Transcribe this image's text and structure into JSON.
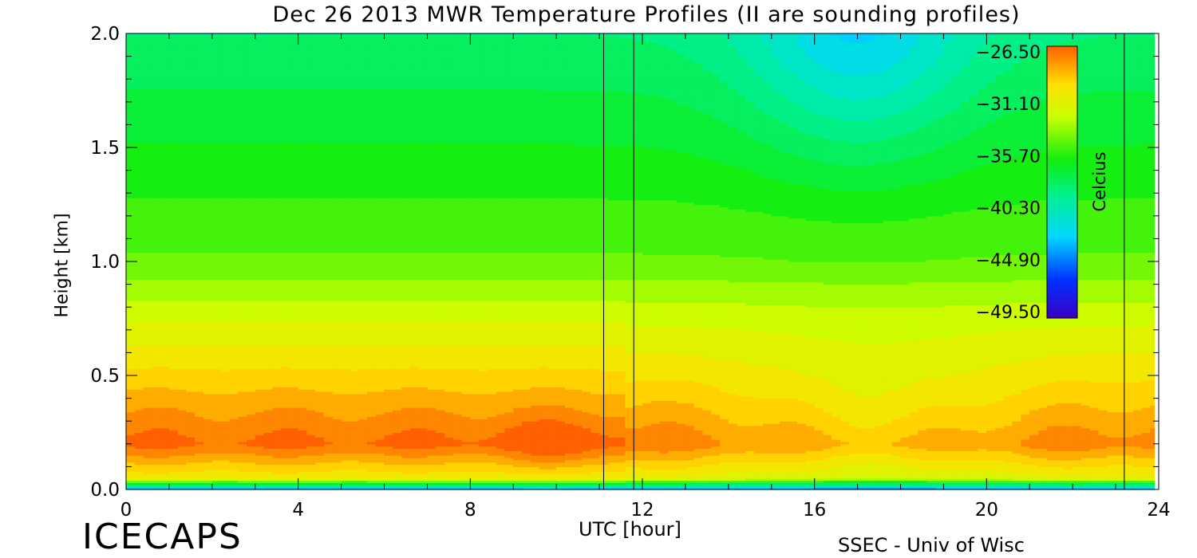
{
  "chart_data": {
    "type": "heatmap",
    "title": "Dec 26 2013 MWR Temperature Profiles (II are sounding profiles)",
    "xlabel": "UTC [hour]",
    "ylabel": "Height [km]",
    "xlim": [
      0,
      24
    ],
    "ylim": [
      0,
      2
    ],
    "x_ticks": [
      0,
      4,
      8,
      12,
      16,
      20,
      24
    ],
    "y_ticks": [
      0.0,
      0.5,
      1.0,
      1.5,
      2.0
    ],
    "colorbar": {
      "label": "Celcius",
      "ticks": [
        -26.5,
        -31.1,
        -35.7,
        -40.3,
        -44.9,
        -49.5
      ],
      "placement": "top-right inside plot"
    },
    "sounding_profile_hours": [
      11.1,
      11.8,
      23.2
    ],
    "field_summary": [
      {
        "height_km": 0.0,
        "temp_c": -44.0
      },
      {
        "height_km": 0.05,
        "temp_c": -31.0
      },
      {
        "height_km": 0.2,
        "temp_c": -27.3
      },
      {
        "height_km": 0.5,
        "temp_c": -30.0
      },
      {
        "height_km": 0.75,
        "temp_c": -32.0
      },
      {
        "height_km": 1.0,
        "temp_c": -34.5
      },
      {
        "height_km": 1.5,
        "temp_c": -36.5
      },
      {
        "height_km": 2.0,
        "temp_c": -38.5
      }
    ],
    "notable_features": {
      "warmest_region": {
        "utc_hour": 10,
        "height_km": 0.2,
        "temp_c": -26.8
      },
      "coldest_aloft": {
        "utc_hour": 17,
        "height_km": 2.0,
        "temp_c": -42.5
      }
    }
  },
  "footer": {
    "left_text": "ICECAPS",
    "right_text": "SSEC - Univ of Wisc"
  }
}
